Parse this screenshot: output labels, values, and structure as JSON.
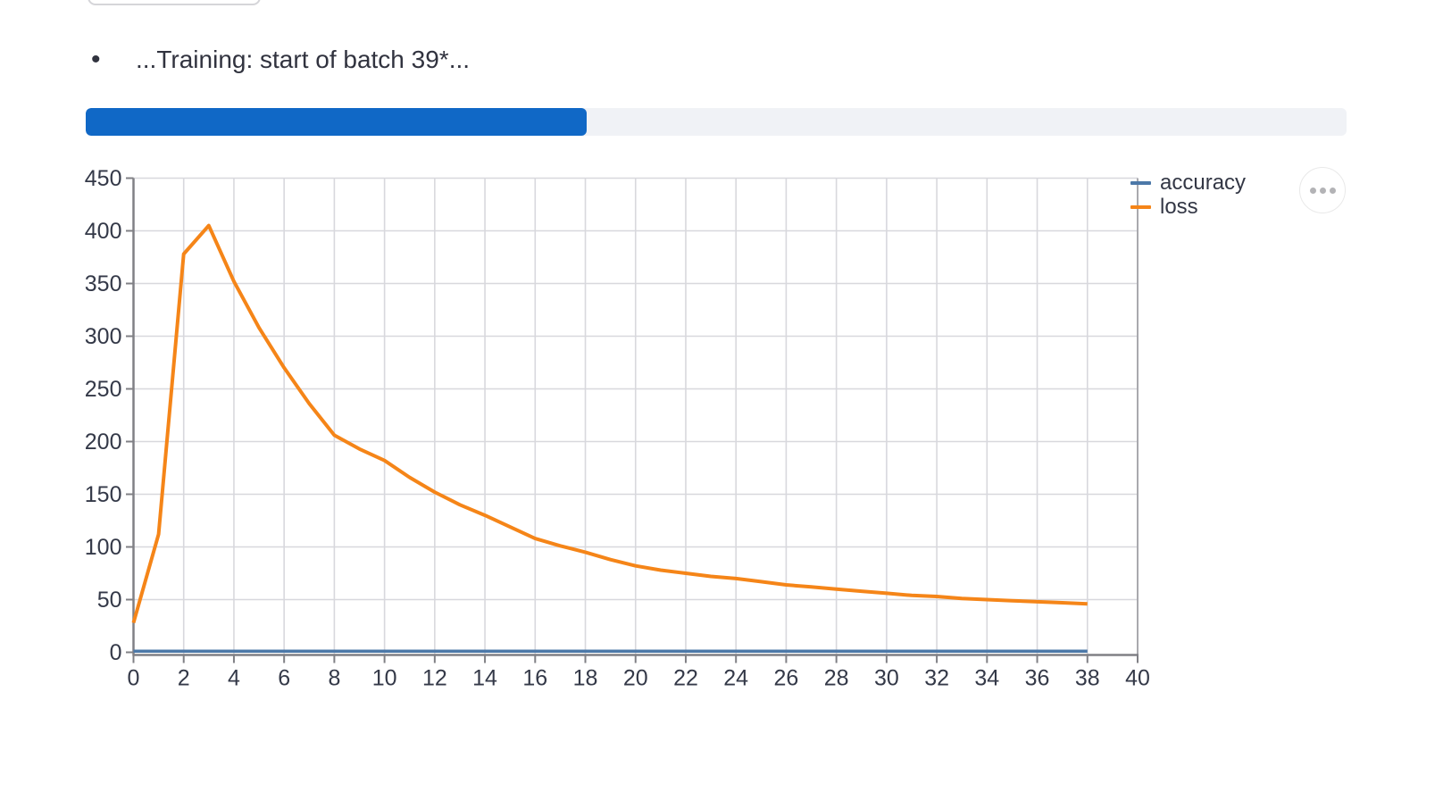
{
  "status_line": {
    "bullet": "•",
    "text": "...Training: start of batch 39*..."
  },
  "progress_bar": {
    "percent": 39.7,
    "fill_color": "#1068C6",
    "track_color": "#F0F2F6"
  },
  "chart_data": {
    "type": "line",
    "title": "",
    "xlabel": "",
    "ylabel": "",
    "xlim": [
      0,
      40
    ],
    "ylim": [
      0,
      450
    ],
    "x_ticks": [
      0,
      2,
      4,
      6,
      8,
      10,
      12,
      14,
      16,
      18,
      20,
      22,
      24,
      26,
      28,
      30,
      32,
      34,
      36,
      38,
      40
    ],
    "y_ticks": [
      0,
      50,
      100,
      150,
      200,
      250,
      300,
      350,
      400,
      450
    ],
    "grid": true,
    "legend_position": "right-top-outside",
    "x": [
      0,
      1,
      2,
      3,
      4,
      5,
      6,
      7,
      8,
      9,
      10,
      11,
      12,
      13,
      14,
      15,
      16,
      17,
      18,
      19,
      20,
      21,
      22,
      23,
      24,
      25,
      26,
      27,
      28,
      29,
      30,
      31,
      32,
      33,
      34,
      35,
      36,
      37,
      38
    ],
    "series": [
      {
        "name": "accuracy",
        "color": "#4C78A8",
        "values": [
          1,
          1,
          1,
          1,
          1,
          1,
          1,
          1,
          1,
          1,
          1,
          1,
          1,
          1,
          1,
          1,
          1,
          1,
          1,
          1,
          1,
          1,
          1,
          1,
          1,
          1,
          1,
          1,
          1,
          1,
          1,
          1,
          1,
          1,
          1,
          1,
          1,
          1,
          1
        ]
      },
      {
        "name": "loss",
        "color": "#F58518",
        "values": [
          28,
          112,
          378,
          405,
          352,
          308,
          270,
          236,
          206,
          193,
          182,
          166,
          152,
          140,
          130,
          119,
          108,
          101,
          95,
          88,
          82,
          78,
          75,
          72,
          70,
          67,
          64,
          62,
          60,
          58,
          56,
          54,
          53,
          51,
          50,
          49,
          48,
          47,
          46
        ]
      }
    ],
    "actions_button": "more-options"
  },
  "chart_style": {
    "grid_color": "#D8D8DD",
    "border_color": "#A9A9AE",
    "domain_color": "#808085",
    "tick_label_color": "#343948"
  }
}
